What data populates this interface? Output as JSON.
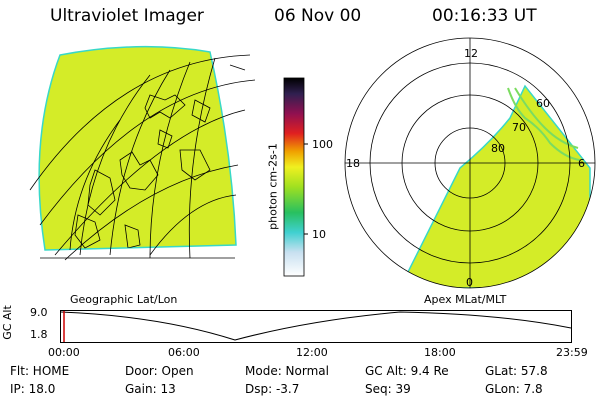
{
  "header": {
    "instrument": "Ultraviolet Imager",
    "date": "06 Nov 00",
    "time": "00:16:33 UT"
  },
  "geographic_panel": {
    "label": "Geographic Lat/Lon"
  },
  "colorbar": {
    "unit_label": "photon cm-2s-1",
    "ticks": [
      "100",
      "10"
    ]
  },
  "polar_panel": {
    "label": "Apex MLat/MLT",
    "mlt_labels": [
      "12",
      "18",
      "6",
      "0"
    ],
    "mlat_labels": [
      "60",
      "70",
      "80"
    ]
  },
  "altitude_track": {
    "axis_label": "GC Alt",
    "y_ticks": [
      "9.0",
      "1.8"
    ],
    "time_ticks": [
      "00:00",
      "06:00",
      "12:00",
      "18:00",
      "23:59"
    ]
  },
  "status": {
    "flt": "Flt: HOME",
    "ip": "IP: 18.0",
    "door": "Door: Open",
    "gain": "Gain: 13",
    "mode": "Mode: Normal",
    "dsp": "Dsp:    -3.7",
    "gc_alt": "GC Alt: 9.4 Re",
    "seq": "Seq: 39",
    "glat": "GLat:   57.8",
    "glon": "GLon:    7.8"
  },
  "colors": {
    "aurora_fill": "#d4ec28",
    "aurora_edge": "#38d8c8",
    "track_marker": "#cc0000"
  }
}
